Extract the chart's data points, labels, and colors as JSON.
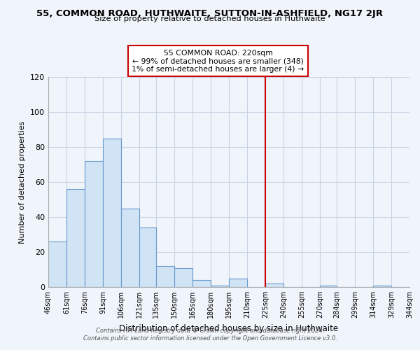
{
  "title_main": "55, COMMON ROAD, HUTHWAITE, SUTTON-IN-ASHFIELD, NG17 2JR",
  "title_sub": "Size of property relative to detached houses in Huthwaite",
  "xlabel": "Distribution of detached houses by size in Huthwaite",
  "ylabel": "Number of detached properties",
  "bar_color": "#d0e4f5",
  "bar_edge_color": "#6699cc",
  "bins": [
    46,
    61,
    76,
    91,
    106,
    121,
    135,
    150,
    165,
    180,
    195,
    210,
    225,
    240,
    255,
    270,
    284,
    299,
    314,
    329,
    344
  ],
  "counts": [
    26,
    56,
    72,
    85,
    45,
    34,
    12,
    11,
    4,
    1,
    5,
    0,
    2,
    0,
    0,
    1,
    0,
    0,
    1,
    0
  ],
  "tick_labels": [
    "46sqm",
    "61sqm",
    "76sqm",
    "91sqm",
    "106sqm",
    "121sqm",
    "135sqm",
    "150sqm",
    "165sqm",
    "180sqm",
    "195sqm",
    "210sqm",
    "225sqm",
    "240sqm",
    "255sqm",
    "270sqm",
    "284sqm",
    "299sqm",
    "314sqm",
    "329sqm",
    "344sqm"
  ],
  "vline_x": 225,
  "vline_color": "#cc0000",
  "annotation_title": "55 COMMON ROAD: 220sqm",
  "annotation_line1": "← 99% of detached houses are smaller (348)",
  "annotation_line2": "1% of semi-detached houses are larger (4) →",
  "ylim": [
    0,
    120
  ],
  "yticks": [
    0,
    20,
    40,
    60,
    80,
    100,
    120
  ],
  "footnote1": "Contains HM Land Registry data © Crown copyright and database right 2024.",
  "footnote2": "Contains public sector information licensed under the Open Government Licence v3.0.",
  "bg_color": "#f0f4fb",
  "grid_color": "#c8d4e4"
}
